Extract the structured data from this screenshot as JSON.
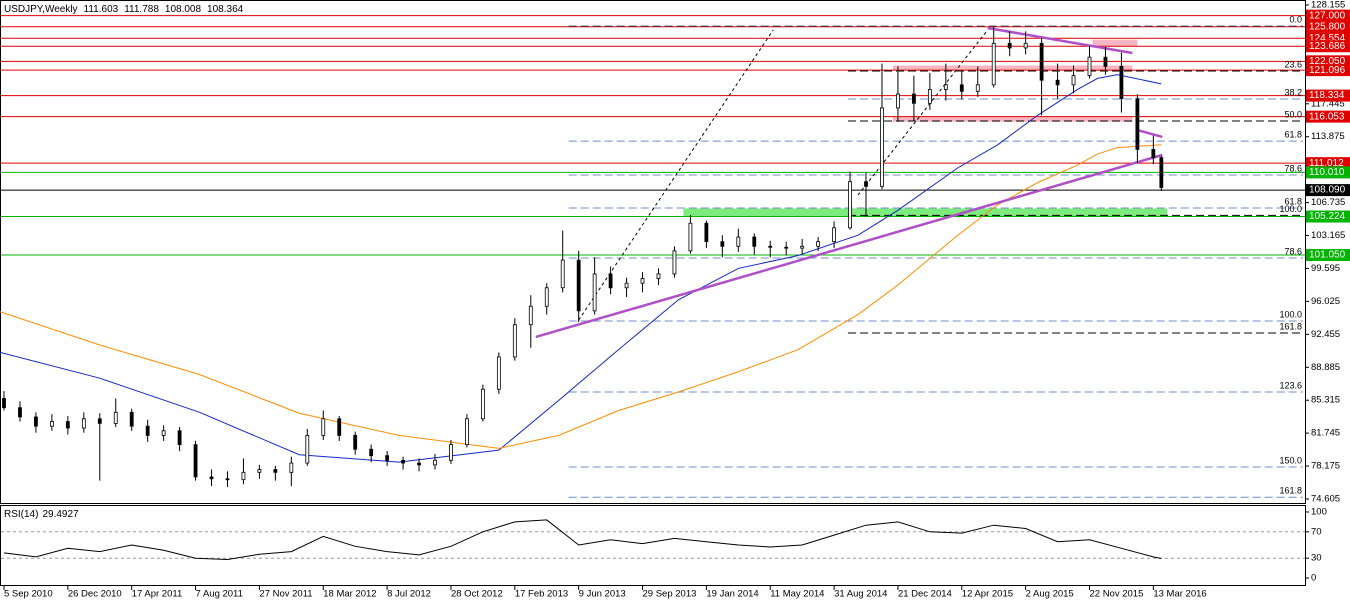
{
  "chart_data": {
    "type": "candlestick",
    "title": "USDJPY,Weekly",
    "x": [
      0,
      4,
      8,
      12,
      16,
      20,
      24,
      28,
      32,
      36,
      40,
      44,
      48,
      52,
      56,
      60,
      64,
      68,
      72,
      76,
      80,
      84,
      88,
      92,
      96,
      100,
      104,
      108,
      112,
      116,
      120,
      124,
      128,
      132,
      136,
      140,
      144,
      148,
      152,
      156,
      160,
      164,
      168,
      172,
      176,
      180,
      184,
      188,
      192,
      196,
      200,
      204,
      208,
      212,
      216,
      220,
      224,
      228,
      232,
      236,
      240,
      244,
      248,
      252,
      256,
      260,
      264,
      268,
      272,
      276,
      280,
      284,
      288,
      290
    ],
    "open": [
      85.5,
      84.5,
      83.5,
      82.5,
      83.0,
      82.3,
      83.3,
      82.8,
      84.0,
      82.5,
      81.5,
      82.0,
      80.5,
      77.0,
      76.8,
      76.7,
      77.5,
      77.8,
      77.5,
      78.5,
      81.5,
      83.3,
      81.5,
      80.0,
      79.3,
      78.8,
      78.5,
      78.3,
      78.8,
      80.5,
      83.3,
      86.5,
      90.0,
      93.5,
      95.5,
      97.5,
      100.5,
      95.0,
      99.0,
      97.5,
      98.0,
      98.5,
      99.0,
      101.5,
      104.5,
      102.5,
      102.0,
      103.0,
      102.0,
      101.9,
      101.8,
      102.0,
      102.5,
      104.0,
      109.0,
      108.5,
      117.0,
      118.5,
      117.5,
      119.0,
      119.5,
      118.8,
      119.5,
      124.0,
      123.5,
      124.0,
      120.0,
      119.5,
      120.5,
      122.5,
      121.5,
      118.0,
      112.5,
      111.603
    ],
    "high": [
      86.3,
      85.2,
      84.0,
      83.8,
      83.6,
      84.0,
      83.9,
      85.5,
      84.4,
      83.2,
      82.6,
      82.4,
      80.9,
      77.8,
      77.6,
      79.0,
      78.3,
      78.2,
      79.2,
      82.2,
      84.2,
      83.6,
      81.9,
      80.5,
      79.8,
      79.2,
      79.0,
      79.5,
      81.0,
      83.8,
      87.0,
      90.5,
      94.2,
      96.7,
      98.0,
      103.7,
      101.5,
      100.8,
      99.8,
      98.6,
      99.2,
      99.6,
      102.0,
      105.4,
      104.8,
      103.2,
      103.9,
      103.4,
      102.6,
      102.5,
      102.8,
      103.0,
      104.7,
      110.1,
      110.0,
      121.8,
      121.5,
      120.5,
      120.8,
      121.8,
      121.0,
      121.5,
      125.8,
      125.3,
      125.3,
      124.6,
      121.8,
      121.6,
      123.7,
      123.6,
      123.0,
      118.5,
      114.0,
      111.788
    ],
    "low": [
      84.2,
      83.0,
      81.8,
      82.0,
      81.6,
      81.8,
      76.6,
      82.4,
      82.0,
      80.8,
      80.9,
      79.8,
      76.6,
      76.0,
      75.9,
      76.2,
      76.8,
      76.6,
      76.0,
      78.2,
      81.0,
      80.9,
      79.4,
      78.6,
      78.2,
      77.8,
      77.6,
      77.8,
      78.4,
      80.2,
      83.0,
      86.0,
      89.6,
      91.0,
      94.6,
      97.0,
      93.8,
      94.6,
      96.8,
      96.5,
      97.0,
      97.8,
      98.6,
      101.2,
      101.8,
      100.8,
      101.4,
      101.1,
      100.8,
      101.0,
      101.2,
      101.5,
      101.8,
      103.8,
      105.2,
      108.2,
      115.5,
      115.6,
      116.8,
      117.8,
      117.9,
      118.2,
      119.2,
      122.6,
      122.8,
      116.2,
      118.0,
      118.6,
      120.2,
      120.6,
      116.5,
      111.0,
      110.9,
      108.008
    ],
    "close": [
      84.5,
      83.5,
      82.5,
      83.0,
      82.3,
      83.3,
      82.8,
      84.0,
      82.5,
      81.5,
      82.0,
      80.5,
      77.0,
      76.8,
      76.7,
      77.5,
      77.8,
      77.5,
      78.5,
      81.5,
      83.3,
      81.5,
      80.0,
      79.3,
      78.8,
      78.5,
      78.3,
      78.8,
      80.5,
      83.3,
      86.5,
      90.0,
      93.5,
      95.5,
      97.5,
      100.5,
      95.0,
      99.0,
      97.5,
      98.0,
      98.5,
      99.0,
      101.5,
      104.5,
      102.5,
      102.0,
      103.0,
      102.0,
      101.9,
      101.8,
      102.0,
      102.5,
      104.0,
      109.0,
      108.5,
      117.0,
      118.5,
      117.5,
      119.0,
      119.5,
      118.8,
      119.5,
      124.0,
      123.5,
      124.0,
      120.0,
      119.5,
      120.5,
      122.5,
      121.5,
      118.0,
      112.5,
      111.6,
      108.364
    ],
    "color_up": "#ffffff",
    "color_down": "#000000",
    "xlim": [
      -1,
      325
    ],
    "xticks": [
      {
        "value": 0,
        "label": "5 Sep 2010"
      },
      {
        "value": 16,
        "label": "26 Dec 2010"
      },
      {
        "value": 32,
        "label": "17 Apr 2011"
      },
      {
        "value": 48,
        "label": "7 Aug 2011"
      },
      {
        "value": 64,
        "label": "27 Nov 2011"
      },
      {
        "value": 80,
        "label": "18 Mar 2012"
      },
      {
        "value": 96,
        "label": "8 Jul 2012"
      },
      {
        "value": 112,
        "label": "28 Oct 2012"
      },
      {
        "value": 128,
        "label": "17 Feb 2013"
      },
      {
        "value": 144,
        "label": "9 Jun 2013"
      },
      {
        "value": 160,
        "label": "29 Sep 2013"
      },
      {
        "value": 176,
        "label": "19 Jan 2014"
      },
      {
        "value": 192,
        "label": "11 May 2014"
      },
      {
        "value": 208,
        "label": "31 Aug 2014"
      },
      {
        "value": 224,
        "label": "21 Dec 2014"
      },
      {
        "value": 240,
        "label": "12 Apr 2015"
      },
      {
        "value": 256,
        "label": "2 Aug 2015"
      },
      {
        "value": 272,
        "label": "22 Nov 2015"
      },
      {
        "value": 288,
        "label": "13 Mar 2016"
      }
    ],
    "ylim": [
      74.605,
      128.155
    ],
    "yticks": [
      128.155,
      124.585,
      121.015,
      117.445,
      113.875,
      110.305,
      106.735,
      103.165,
      99.595,
      96.025,
      92.455,
      88.885,
      85.315,
      81.745,
      78.175,
      74.605
    ],
    "levels": [
      {
        "value": 127,
        "label": "127.000",
        "color": "#e00000"
      },
      {
        "value": 125.8,
        "label": "125.800",
        "color": "#e00000"
      },
      {
        "value": 124.554,
        "label": "124.554",
        "color": "#e00000"
      },
      {
        "value": 123.686,
        "label": "123.686",
        "color": "#e00000"
      },
      {
        "value": 122.05,
        "label": "122.050",
        "color": "#e00000"
      },
      {
        "value": 121.096,
        "label": "121.096",
        "color": "#e00000"
      },
      {
        "value": 118.334,
        "label": "118.334",
        "color": "#e00000"
      },
      {
        "value": 116.053,
        "label": "116.053",
        "color": "#e00000"
      },
      {
        "value": 111.012,
        "label": "111.012",
        "color": "#e00000"
      },
      {
        "value": 110.01,
        "label": "110.010",
        "color": "#00b400"
      },
      {
        "value": 108.09,
        "label": "108.090",
        "color": "#000000"
      },
      {
        "value": 105.224,
        "label": "105.224",
        "color": "#00b400"
      },
      {
        "value": 101.05,
        "label": "101.050",
        "color": "#00b400"
      }
    ],
    "fib_levels": [
      {
        "name": "0.0",
        "value": 125.86,
        "x_start": 141.5,
        "color": "#3a3a5a"
      },
      {
        "name": "23.6",
        "value": 121.0,
        "x_start": 211.5,
        "color": "#000000"
      },
      {
        "name": "38.2",
        "value": 117.97,
        "x_start": 211.5,
        "color": "#6f8fc8"
      },
      {
        "name": "50.0",
        "value": 115.58,
        "x_start": 211.5,
        "color": "#000000"
      },
      {
        "name": "61.8",
        "value": 113.4,
        "x_start": 141.5,
        "color": "#6f8fc8"
      },
      {
        "name": "78.6",
        "value": 109.73,
        "x_start": 141.5,
        "color": "#6f8fc8"
      },
      {
        "name": "61.8",
        "value": 106.15,
        "x_start": 141.5,
        "color": "#6f8fc8"
      },
      {
        "name": "100.0",
        "value": 105.35,
        "x_start": 211.5,
        "color": "#000000"
      },
      {
        "name": "78.6",
        "value": 100.73,
        "x_start": 141.5,
        "color": "#6f8fc8"
      },
      {
        "name": "100.0",
        "value": 93.9,
        "x_start": 141.5,
        "color": "#6f8fc8"
      },
      {
        "name": "161.8",
        "value": 92.6,
        "x_start": 211.5,
        "color": "#000000"
      },
      {
        "name": "123.6",
        "value": 86.2,
        "x_start": 141.5,
        "color": "#6f8fc8"
      },
      {
        "name": "150.0",
        "value": 78.08,
        "x_start": 141.5,
        "color": "#6f8fc8"
      },
      {
        "name": "161.8",
        "value": 74.8,
        "x_start": 141.5,
        "color": "#6f8fc8"
      }
    ],
    "zones": [
      {
        "x": [
          272.75,
          284
        ],
        "range": [
          123.686,
          124.4
        ],
        "color": "#f7b6c2"
      },
      {
        "x": [
          222.75,
          282.75
        ],
        "range": [
          121.1,
          121.6
        ],
        "color": "#f7b6c2"
      },
      {
        "x": [
          222.75,
          282.75
        ],
        "range": [
          115.5,
          116.05
        ],
        "color": "#f7b6c2"
      },
      {
        "x": [
          170.25,
          291.5
        ],
        "range": [
          105.224,
          106.1
        ],
        "color": "#7dea7d"
      }
    ],
    "trendlines": [
      {
        "x": [
          133.25,
          290.25
        ],
        "y": [
          92.17,
          111.9
        ],
        "color": "#b050c8",
        "dashed": false
      },
      {
        "x": [
          246.5,
          282.75
        ],
        "y": [
          125.66,
          122.95
        ],
        "color": "#b050c8",
        "dashed": false
      },
      {
        "x": [
          284,
          290.25
        ],
        "y": [
          114.6,
          113.85
        ],
        "color": "#b050c8",
        "dashed": false
      },
      {
        "x": [
          144,
          192.75
        ],
        "y": [
          94.0,
          125.45
        ],
        "color": "#000000",
        "dashed": true
      },
      {
        "x": [
          214,
          246.5
        ],
        "y": [
          107.56,
          125.45
        ],
        "color": "#000000",
        "dashed": true
      }
    ],
    "moving_averages": [
      {
        "x": [
          -1,
          24,
          49,
          74,
          99,
          124,
          139,
          154,
          169,
          184,
          199,
          214,
          224,
          239,
          249,
          259,
          269,
          274,
          279,
          290
        ],
        "values": [
          90.5,
          87.7,
          84.0,
          79.4,
          78.6,
          79.9,
          85.3,
          90.8,
          96.2,
          99.6,
          101.0,
          103.2,
          105.9,
          110.5,
          113.0,
          116.2,
          119.0,
          120.2,
          120.6,
          119.6
        ],
        "color": "#1428c8"
      },
      {
        "x": [
          -1,
          24,
          49,
          74,
          99,
          124,
          139,
          154,
          169,
          184,
          199,
          214,
          224,
          239,
          249,
          259,
          269,
          274,
          279,
          290
        ],
        "values": [
          94.9,
          91.3,
          88.1,
          83.9,
          81.5,
          80.1,
          81.5,
          84.2,
          86.2,
          88.4,
          90.8,
          94.6,
          97.8,
          103.2,
          106.5,
          108.9,
          110.8,
          112.0,
          112.7,
          113.0
        ],
        "color": "#ff8c00"
      }
    ],
    "rsi": {
      "title": "RSI(14)",
      "x": [
        0,
        8,
        16,
        24,
        32,
        40,
        48,
        56,
        64,
        72,
        80,
        88,
        96,
        104,
        112,
        120,
        128,
        136,
        144,
        152,
        160,
        168,
        176,
        184,
        192,
        200,
        208,
        216,
        224,
        232,
        240,
        248,
        256,
        264,
        272,
        280,
        288,
        290
      ],
      "values": [
        38,
        32,
        45,
        40,
        50,
        42,
        30,
        28,
        36,
        40,
        63,
        48,
        40,
        35,
        48,
        70,
        85,
        88,
        50,
        58,
        52,
        60,
        55,
        50,
        47,
        50,
        65,
        80,
        85,
        70,
        68,
        80,
        75,
        55,
        58,
        45,
        32,
        29.4927
      ],
      "color": "#000000",
      "ylim": [
        0,
        100
      ],
      "yticks": [
        0,
        30,
        70,
        100
      ]
    }
  }
}
